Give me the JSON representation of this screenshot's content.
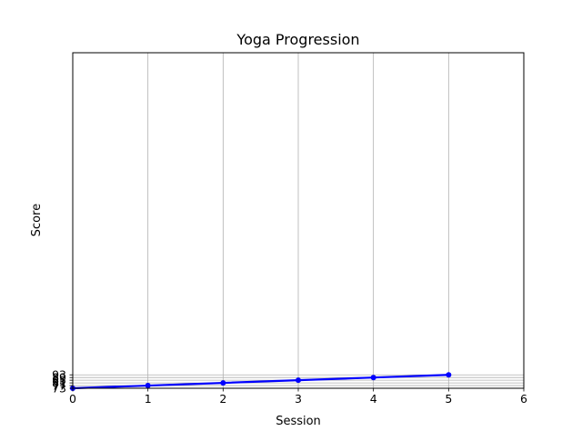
{
  "chart_data": {
    "type": "line",
    "title": "Yoga Progression",
    "xlabel": "Session",
    "ylabel": "Score",
    "xlim": [
      0,
      6
    ],
    "x_ticks": [
      0,
      1,
      2,
      3,
      4,
      5,
      6
    ],
    "y_ticks": [
      73,
      77,
      81,
      85,
      89,
      93
    ],
    "y_tick_labels": [
      "73",
      "77",
      "81",
      "85",
      "89",
      "93"
    ],
    "grid": true,
    "series": [
      {
        "x": [
          0,
          1,
          2,
          3,
          4,
          5
        ],
        "y": [
          73,
          77,
          81,
          85,
          89,
          93
        ],
        "color": "#0000ff",
        "marker": "circle"
      }
    ]
  }
}
